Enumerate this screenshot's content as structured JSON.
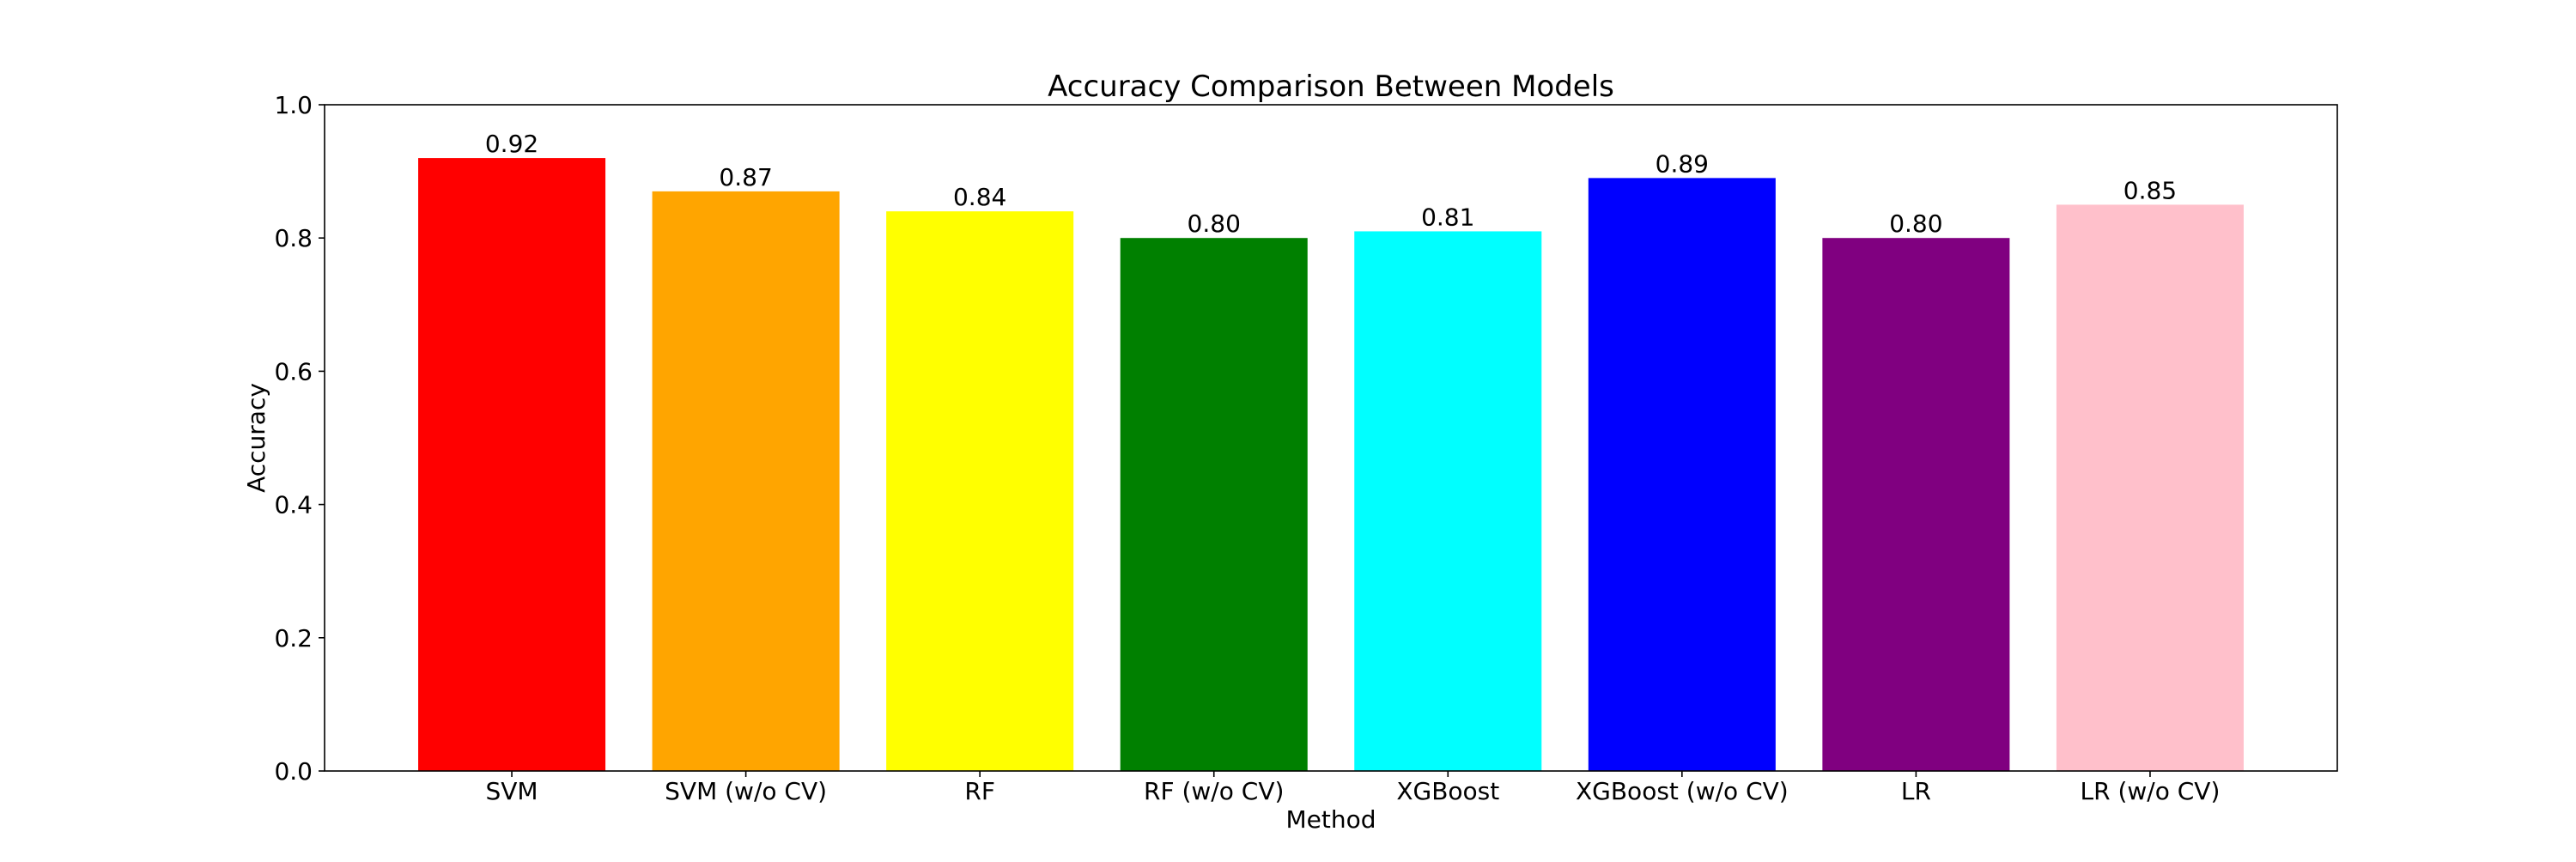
{
  "chart_data": {
    "type": "bar",
    "title": "Accuracy Comparison Between Models",
    "xlabel": "Method",
    "ylabel": "Accuracy",
    "ylim": [
      0,
      1.0
    ],
    "yticks": [
      "0.0",
      "0.2",
      "0.4",
      "0.6",
      "0.8",
      "1.0"
    ],
    "grid": false,
    "legend": "none",
    "categories": [
      "SVM",
      "SVM (w/o CV)",
      "RF",
      "RF (w/o CV)",
      "XGBoost",
      "XGBoost (w/o CV)",
      "LR",
      "LR (w/o CV)"
    ],
    "values": [
      0.92,
      0.87,
      0.84,
      0.8,
      0.81,
      0.89,
      0.8,
      0.85
    ],
    "value_labels": [
      "0.92",
      "0.87",
      "0.84",
      "0.80",
      "0.81",
      "0.89",
      "0.80",
      "0.85"
    ],
    "colors": [
      "#ff0000",
      "#ffa500",
      "#ffff00",
      "#008000",
      "#00ffff",
      "#0000ff",
      "#800080",
      "#ffc0cb"
    ]
  }
}
